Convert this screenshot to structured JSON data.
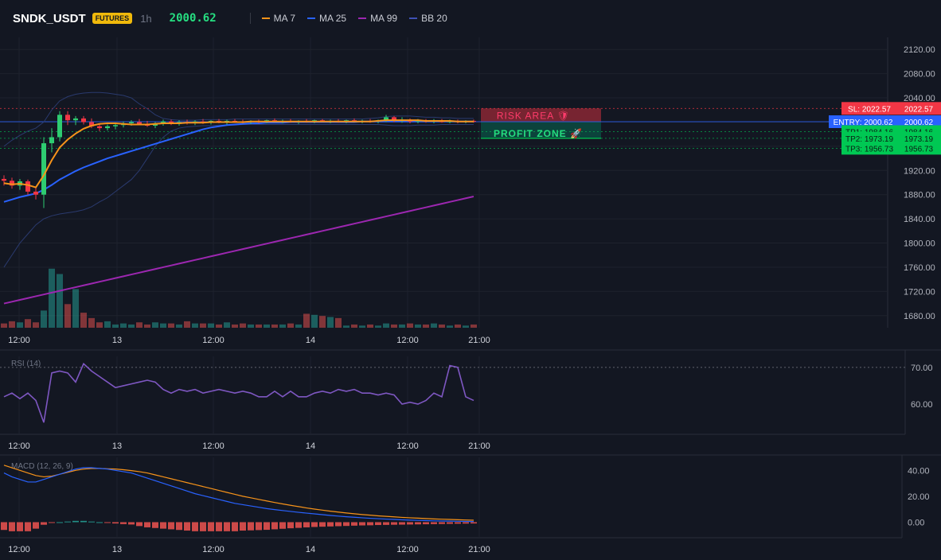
{
  "header": {
    "symbol": "SNDK_USDT",
    "badge": "FUTURES",
    "interval": "1h",
    "price": "2000.62",
    "legend": [
      {
        "label": "MA 7",
        "color": "#f7931a"
      },
      {
        "label": "MA 25",
        "color": "#2962ff"
      },
      {
        "label": "MA 99",
        "color": "#9c27b0"
      },
      {
        "label": "BB 20",
        "color": "#3f51b5"
      }
    ]
  },
  "colors": {
    "up": "#26a69a",
    "down": "#ef5350",
    "upBright": "#2ecc71",
    "downBright": "#f23645",
    "ma7": "#f7931a",
    "ma25": "#2962ff",
    "ma99": "#9c27b0",
    "bb": "#2a3a6e",
    "rsi": "#7e57c2",
    "macd": "#2962ff",
    "signal": "#f7931a",
    "sl": "#f23645",
    "entry": "#2962ff",
    "tp": "#00c853"
  },
  "chart_data": [
    {
      "type": "candlestick",
      "x_ticks": [
        "12:00",
        "13",
        "12:00",
        "14",
        "12:00",
        "21:00"
      ],
      "y_ticks": [
        "2120.00",
        "2080.00",
        "2040.00",
        "2000.00",
        "1960.00",
        "1920.00",
        "1880.00",
        "1840.00",
        "1800.00",
        "1760.00",
        "1720.00",
        "1680.00"
      ],
      "ylim": [
        1660,
        2140
      ],
      "ohlc": [
        [
          1906,
          1912,
          1895,
          1903
        ],
        [
          1903,
          1908,
          1890,
          1895
        ],
        [
          1895,
          1906,
          1888,
          1902
        ],
        [
          1902,
          1905,
          1880,
          1885
        ],
        [
          1885,
          1892,
          1872,
          1880
        ],
        [
          1880,
          1975,
          1858,
          1965
        ],
        [
          1965,
          1990,
          1950,
          1975
        ],
        [
          1975,
          2018,
          1968,
          2012
        ],
        [
          2012,
          2018,
          1995,
          2003
        ],
        [
          2003,
          2010,
          1995,
          2006
        ],
        [
          2006,
          2010,
          1996,
          2000
        ],
        [
          2000,
          2006,
          1990,
          1993
        ],
        [
          1993,
          1998,
          1985,
          1990
        ],
        [
          1990,
          1996,
          1986,
          1993
        ],
        [
          1993,
          1999,
          1988,
          1995
        ],
        [
          1995,
          2001,
          1991,
          1998
        ],
        [
          1998,
          2003,
          1994,
          2000
        ],
        [
          2000,
          2005,
          1995,
          1997
        ],
        [
          1997,
          2002,
          1992,
          1994
        ],
        [
          1994,
          2000,
          1990,
          1998
        ],
        [
          1998,
          2004,
          1994,
          2001
        ],
        [
          2001,
          2004,
          1995,
          1997
        ],
        [
          1997,
          2003,
          1994,
          2000
        ],
        [
          2000,
          2004,
          1996,
          1998
        ],
        [
          1998,
          2003,
          1995,
          2001
        ],
        [
          2001,
          2005,
          1997,
          1999
        ],
        [
          1999,
          2003,
          1996,
          2002
        ],
        [
          2002,
          2005,
          1998,
          2000
        ],
        [
          2000,
          2004,
          1996,
          2002
        ],
        [
          2002,
          2005,
          1999,
          2001
        ],
        [
          2001,
          2004,
          1998,
          2000
        ],
        [
          2000,
          2003,
          1997,
          2002
        ],
        [
          2002,
          2004,
          1998,
          2000
        ],
        [
          2000,
          2004,
          1998,
          2003
        ],
        [
          2003,
          2006,
          2000,
          2001
        ],
        [
          2001,
          2004,
          1998,
          2002
        ],
        [
          2002,
          2005,
          1999,
          2000
        ],
        [
          2000,
          2003,
          1997,
          2002
        ],
        [
          2002,
          2005,
          1999,
          2001
        ],
        [
          2001,
          2004,
          1998,
          2003
        ],
        [
          2003,
          2005,
          2000,
          2001
        ],
        [
          2001,
          2004,
          1998,
          2002
        ],
        [
          2002,
          2005,
          1999,
          2000
        ],
        [
          2000,
          2004,
          1998,
          2003
        ],
        [
          2003,
          2006,
          2000,
          2001
        ],
        [
          2001,
          2004,
          1998,
          2002
        ],
        [
          2002,
          2005,
          1999,
          2001
        ],
        [
          2001,
          2004,
          1998,
          2003
        ],
        [
          2003,
          2012,
          2000,
          2008
        ],
        [
          2008,
          2010,
          2000,
          2002
        ],
        [
          2002,
          2008,
          1999,
          2004
        ],
        [
          2004,
          2006,
          1998,
          2001
        ],
        [
          2001,
          2005,
          1998,
          2003
        ],
        [
          2003,
          2005,
          1999,
          2001
        ],
        [
          2001,
          2005,
          1998,
          2003
        ],
        [
          2003,
          2005,
          1999,
          2000
        ],
        [
          2000,
          2004,
          1998,
          2002
        ],
        [
          2002,
          2004,
          1998,
          2000
        ],
        [
          2000,
          2003,
          1998,
          2002
        ],
        [
          2002,
          2004,
          1999,
          2001
        ]
      ],
      "volume": [
        4,
        6,
        5,
        8,
        5,
        16,
        55,
        50,
        22,
        36,
        14,
        9,
        5,
        6,
        3,
        4,
        3,
        5,
        3,
        5,
        4,
        4,
        3,
        6,
        4,
        4,
        4,
        3,
        5,
        3,
        4,
        3,
        3,
        3,
        3,
        3,
        4,
        3,
        13,
        12,
        11,
        10,
        9,
        2,
        3,
        2,
        3,
        2,
        4,
        3,
        3,
        4,
        3,
        3,
        4,
        3,
        2,
        3,
        2,
        3
      ],
      "ma7": [
        1899,
        1897,
        1898,
        1896,
        1892,
        1912,
        1937,
        1958,
        1971,
        1981,
        1989,
        1994,
        1997,
        1998,
        1998,
        1997,
        1996,
        1996,
        1996,
        1997,
        1998,
        1998,
        1998,
        1999,
        1999,
        1999,
        2000,
        2000,
        2000,
        2000,
        2000,
        2001,
        2001,
        2001,
        2001,
        2001,
        2001,
        2001,
        2001,
        2001,
        2001,
        2001,
        2001,
        2001,
        2001,
        2001,
        2001,
        2002,
        2003,
        2003,
        2003,
        2003,
        2003,
        2002,
        2002,
        2002,
        2002,
        2001,
        2001,
        2001
      ],
      "ma25": [
        1868,
        1872,
        1876,
        1879,
        1882,
        1888,
        1896,
        1905,
        1912,
        1919,
        1925,
        1930,
        1935,
        1940,
        1944,
        1948,
        1952,
        1956,
        1960,
        1964,
        1968,
        1972,
        1976,
        1980,
        1984,
        1988,
        1991,
        1993,
        1995,
        1996,
        1997,
        1998,
        1998,
        1999,
        1999,
        1999,
        2000,
        2000,
        2000,
        2000,
        2000,
        2000,
        2000,
        2000,
        2000,
        2001,
        2001,
        2001,
        2001,
        2001,
        2001,
        2001,
        2001,
        2001,
        2001,
        2001,
        2001,
        2001,
        2001,
        2001
      ],
      "ma99": [
        1700,
        1703,
        1706,
        1709,
        1712,
        1715,
        1718,
        1721,
        1724,
        1727,
        1730,
        1733,
        1736,
        1739,
        1742,
        1745,
        1748,
        1751,
        1754,
        1757,
        1760,
        1763,
        1766,
        1769,
        1772,
        1775,
        1778,
        1781,
        1784,
        1787,
        1790,
        1793,
        1796,
        1799,
        1802,
        1805,
        1808,
        1811,
        1814,
        1817,
        1820,
        1823,
        1826,
        1829,
        1832,
        1835,
        1838,
        1841,
        1844,
        1847,
        1850,
        1853,
        1856,
        1859,
        1862,
        1865,
        1868,
        1871,
        1874,
        1877
      ],
      "bb_upper": [
        1960,
        1970,
        1978,
        1985,
        1990,
        2000,
        2020,
        2035,
        2042,
        2046,
        2048,
        2049,
        2049,
        2048,
        2046,
        2044,
        2040,
        2030,
        2022,
        2012,
        2006,
        2004,
        2003,
        2003,
        2003,
        2004,
        2004,
        2004,
        2004,
        2005,
        2005,
        2005,
        2005,
        2005,
        2005,
        2005,
        2005,
        2005,
        2005,
        2005,
        2005,
        2005,
        2005,
        2005,
        2005,
        2005,
        2006,
        2007,
        2009,
        2010,
        2010,
        2010,
        2009,
        2008,
        2008,
        2007,
        2007,
        2006,
        2006,
        2006
      ],
      "bb_lower": [
        1760,
        1780,
        1800,
        1815,
        1830,
        1840,
        1845,
        1848,
        1850,
        1852,
        1855,
        1860,
        1868,
        1875,
        1885,
        1895,
        1905,
        1920,
        1940,
        1960,
        1975,
        1985,
        1990,
        1992,
        1993,
        1994,
        1994,
        1995,
        1995,
        1995,
        1996,
        1996,
        1996,
        1996,
        1996,
        1996,
        1996,
        1996,
        1996,
        1996,
        1996,
        1996,
        1996,
        1996,
        1996,
        1996,
        1996,
        1996,
        1995,
        1994,
        1994,
        1994,
        1995,
        1995,
        1995,
        1996,
        1996,
        1996,
        1996,
        1996
      ],
      "levels": [
        {
          "label": "SL: 2022.57",
          "value": 2022.57,
          "price": "2022.57",
          "kind": "sl"
        },
        {
          "label": "ENTRY: 2000.62",
          "value": 2000.62,
          "price": "2000.62",
          "kind": "entry"
        },
        {
          "label": "TP1: 1984.16",
          "value": 1984.16,
          "price": "1984.16",
          "kind": "tp"
        },
        {
          "label": "TP2: 1973.19",
          "value": 1973.19,
          "price": "1973.19",
          "kind": "tp"
        },
        {
          "label": "TP3: 1956.73",
          "value": 1956.73,
          "price": "1956.73",
          "kind": "tp"
        }
      ],
      "zones": {
        "risk": "RISK AREA 🛡",
        "profit": "PROFIT ZONE 🚀"
      }
    },
    {
      "type": "line",
      "title": "RSI (14)",
      "y_ticks": [
        "70.00",
        "60.00"
      ],
      "ylim": [
        52,
        73
      ],
      "overbought": 70,
      "values": [
        62,
        63,
        61.5,
        63,
        61,
        55,
        68.5,
        69,
        68.5,
        66,
        71,
        69,
        67.5,
        66,
        64.5,
        65,
        65.5,
        66,
        66.5,
        66,
        64,
        63,
        64,
        63.5,
        64,
        63,
        63.5,
        64,
        63.5,
        63,
        63.5,
        63,
        62,
        62,
        63.5,
        62,
        63.5,
        62,
        62,
        63,
        63.5,
        63,
        64,
        63.5,
        64,
        63,
        63,
        62.5,
        63,
        62.5,
        60,
        60.5,
        60,
        61,
        63,
        62,
        70.5,
        70,
        62,
        61
      ]
    },
    {
      "type": "bar+line",
      "title": "MACD (12, 26, 9)",
      "y_ticks": [
        "40.00",
        "20.00",
        "0.00"
      ],
      "ylim": [
        -12,
        50
      ],
      "macd": [
        38,
        35,
        33,
        31,
        31,
        33,
        35,
        37,
        39,
        41,
        42,
        42,
        41.5,
        41,
        40,
        39,
        38,
        36,
        34,
        32,
        30,
        28,
        26,
        24,
        22,
        20.5,
        19,
        17.5,
        16,
        14.5,
        13.5,
        12.5,
        11.5,
        10.5,
        9.7,
        9,
        8.3,
        7.6,
        7,
        6.4,
        5.8,
        5.2,
        4.7,
        4.2,
        3.8,
        3.4,
        3,
        2.7,
        2.4,
        2.1,
        1.8,
        1.6,
        1.4,
        1.2,
        1,
        0.9,
        0.8,
        0.7,
        0.6,
        0.5
      ],
      "signal": [
        44,
        42,
        40,
        38,
        36,
        35,
        35.5,
        37,
        38.5,
        40,
        41,
        41.5,
        41.5,
        41.2,
        41,
        40.5,
        39.8,
        39,
        38,
        36.5,
        35,
        33.5,
        32,
        30.5,
        29,
        27.5,
        26,
        24.5,
        23,
        21.5,
        20,
        18.8,
        17.6,
        16.4,
        15.2,
        14.1,
        13,
        12,
        11,
        10.1,
        9.3,
        8.5,
        7.8,
        7.1,
        6.5,
        5.9,
        5.4,
        4.9,
        4.5,
        4.1,
        3.7,
        3.4,
        3.1,
        2.8,
        2.5,
        2.3,
        2.1,
        1.9,
        1.7,
        1.5
      ],
      "histogram": [
        -6,
        -7,
        -7,
        -7,
        -5,
        -2,
        -0.5,
        0,
        0.5,
        1,
        1,
        0.5,
        0,
        -0.2,
        -1,
        -1.5,
        -1.8,
        -3,
        -4,
        -4.5,
        -5,
        -5.5,
        -6,
        -6.5,
        -7,
        -7,
        -7,
        -7,
        -7,
        -7,
        -6.5,
        -6.3,
        -6.1,
        -5.9,
        -5.5,
        -5.1,
        -4.7,
        -4.4,
        -4,
        -3.7,
        -3.5,
        -3.3,
        -3.1,
        -2.9,
        -2.7,
        -2.5,
        -2.4,
        -2.2,
        -2.1,
        -2,
        -1.9,
        -1.8,
        -1.7,
        -1.6,
        -1.5,
        -1.4,
        -1.3,
        -1.2,
        -1.1,
        -1
      ]
    }
  ]
}
